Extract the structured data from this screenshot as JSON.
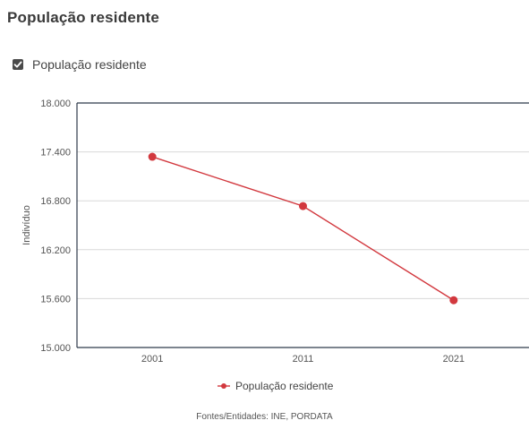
{
  "header": {
    "title": "População residente"
  },
  "toggle": {
    "label": "População residente",
    "checked": true
  },
  "chart_data": {
    "type": "line",
    "categories": [
      "2001",
      "2011",
      "2021"
    ],
    "series": [
      {
        "name": "População residente",
        "values": [
          17340,
          16735,
          15580
        ],
        "color": "#d2383e"
      }
    ],
    "ylabel": "Indivíduo",
    "xlabel": "",
    "ylim": [
      15000,
      18000
    ],
    "yticks": [
      "15.000",
      "15.600",
      "16.200",
      "16.800",
      "17.400",
      "18.000"
    ],
    "ytick_values": [
      15000,
      15600,
      16200,
      16800,
      17400,
      18000
    ],
    "grid": true,
    "legend": "bottom"
  },
  "footer": {
    "source": "Fontes/Entidades: INE, PORDATA"
  }
}
